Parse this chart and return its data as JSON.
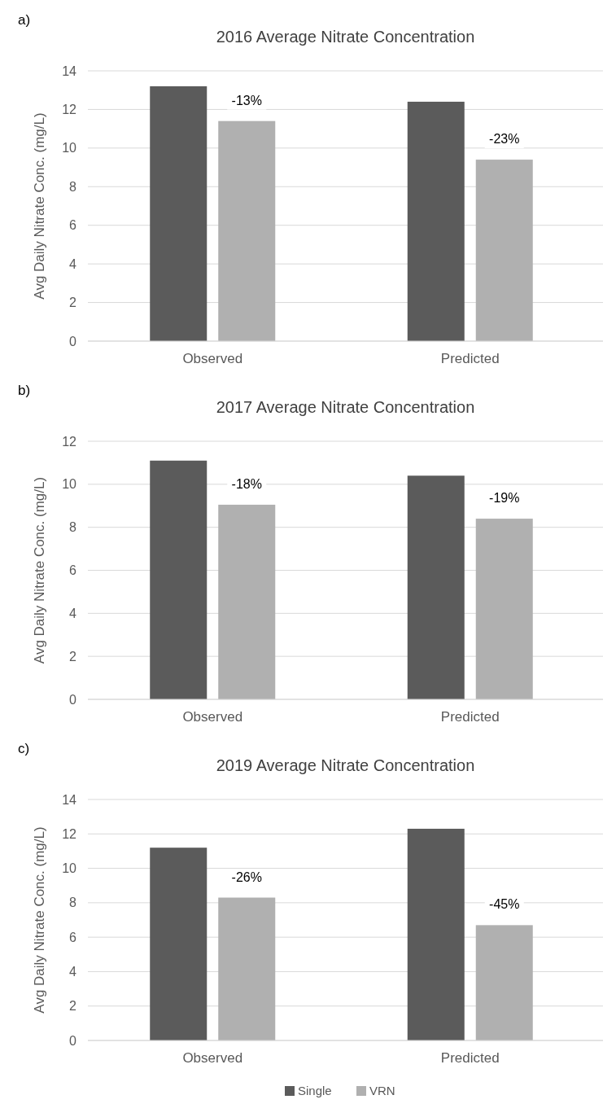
{
  "chart_data": [
    {
      "type": "bar",
      "title": "2016 Average  Nitrate Concentration",
      "ylabel": "Avg Daily Nitrate Conc. (mg/L)",
      "categories": [
        "Observed",
        "Predicted"
      ],
      "series": [
        {
          "color": "#5b5b5b",
          "values": [
            13.2,
            12.4
          ]
        },
        {
          "color": "#b0b0b0",
          "values": [
            11.4,
            9.4
          ]
        }
      ],
      "ylim": [
        0,
        14
      ],
      "yticks": [
        0,
        2,
        4,
        6,
        8,
        10,
        12,
        14
      ],
      "grid": "y",
      "annotations": [
        "a)",
        "-13%",
        "-23%"
      ]
    },
    {
      "type": "bar",
      "title": "2017 Average  Nitrate Concentration",
      "ylabel": "Avg Daily Nitrate Conc. (mg/L)",
      "categories": [
        "Observed",
        "Predicted"
      ],
      "series": [
        {
          "color": "#5b5b5b",
          "values": [
            11.1,
            10.4
          ]
        },
        {
          "color": "#b0b0b0",
          "values": [
            9.05,
            8.4
          ]
        }
      ],
      "ylim": [
        0,
        12
      ],
      "yticks": [
        0,
        2,
        4,
        6,
        8,
        10,
        12
      ],
      "grid": "y",
      "annotations": [
        "b)",
        "-18%",
        "-19%"
      ]
    },
    {
      "type": "bar",
      "title": "2019 Average  Nitrate Concentration",
      "ylabel": "Avg Daily Nitrate Conc. (mg/L)",
      "categories": [
        "Observed",
        "Predicted"
      ],
      "series": [
        {
          "name": "Single",
          "color": "#5b5b5b",
          "values": [
            11.2,
            12.3
          ]
        },
        {
          "name": "VRN",
          "color": "#b0b0b0",
          "values": [
            8.3,
            6.7
          ]
        }
      ],
      "ylim": [
        0,
        14
      ],
      "yticks": [
        0,
        2,
        4,
        6,
        8,
        10,
        12,
        14
      ],
      "grid": "y",
      "legend": "bottom",
      "annotations": [
        "c)",
        "-26%",
        "-45%"
      ]
    }
  ]
}
